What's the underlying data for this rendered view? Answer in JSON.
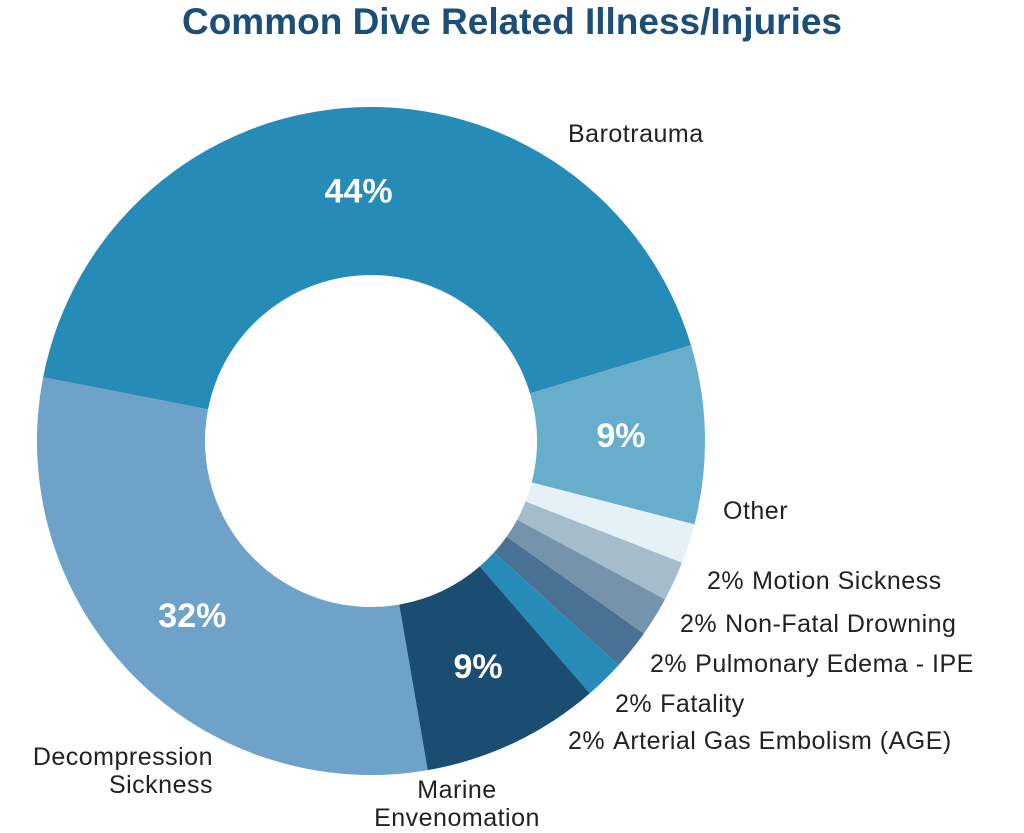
{
  "chart_data": {
    "type": "donut",
    "title": "Common Dive Related Illness/Injuries",
    "categories": [
      "Barotrauma",
      "Other",
      "Motion Sickness",
      "Non-Fatal Drowning",
      "Pulmonary Edema - IPE",
      "Fatality",
      "Arterial Gas Embolism (AGE)",
      "Marine Envenomation",
      "Decompression Sickness"
    ],
    "values": [
      44,
      9,
      2,
      2,
      2,
      2,
      2,
      9,
      32
    ],
    "value_labels": [
      "44%",
      "9%",
      "2%",
      "2%",
      "2%",
      "2%",
      "2%",
      "9%",
      "32%"
    ],
    "colors": [
      "#268bb6",
      "#67adcc",
      "#e6f1f7",
      "#a5bccd",
      "#7594ab",
      "#4a7194",
      "#268bb6",
      "#1b4d72",
      "#6ea2c8"
    ]
  }
}
